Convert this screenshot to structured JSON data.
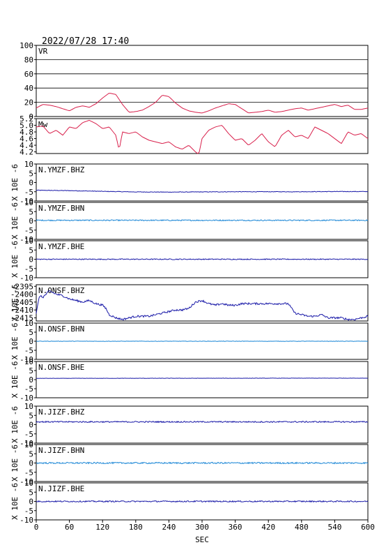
{
  "header": {
    "timestamp": "2022/07/28 17:40"
  },
  "x_axis": {
    "label": "SEC",
    "min": 0,
    "max": 600,
    "ticks": [
      0,
      60,
      120,
      180,
      240,
      300,
      360,
      420,
      480,
      540,
      600
    ]
  },
  "unit_label": "X 10E -6",
  "colors": {
    "frame": "#000000",
    "vr": "#d81e4a",
    "mw": "#d81e4a",
    "dark_blue": "#1a1aa8",
    "light_blue": "#1a86d6",
    "grid": "#000000"
  },
  "chart_data": [
    {
      "type": "line",
      "name": "VR",
      "label": "VR",
      "color": "#d81e4a",
      "ylim": [
        0,
        100
      ],
      "yticks": [
        0,
        20,
        40,
        60,
        80,
        100
      ],
      "grid": true,
      "x": [
        0,
        12,
        24,
        36,
        48,
        60,
        72,
        84,
        96,
        108,
        120,
        132,
        144,
        156,
        168,
        180,
        192,
        204,
        216,
        228,
        240,
        252,
        264,
        276,
        288,
        300,
        312,
        324,
        336,
        348,
        360,
        372,
        384,
        396,
        408,
        420,
        432,
        444,
        456,
        468,
        480,
        492,
        504,
        516,
        528,
        540,
        552,
        564,
        576,
        588,
        600
      ],
      "y": [
        12,
        17,
        16,
        14,
        11,
        8,
        13,
        15,
        13,
        18,
        26,
        33,
        31,
        17,
        6,
        7,
        9,
        14,
        20,
        30,
        28,
        19,
        12,
        8,
        6,
        5,
        8,
        12,
        15,
        18,
        17,
        11,
        5,
        6,
        7,
        9,
        6,
        7,
        9,
        11,
        12,
        9,
        11,
        13,
        15,
        17,
        14,
        16,
        10,
        10,
        12
      ]
    },
    {
      "type": "line",
      "name": "Mw",
      "label": "Mw",
      "color": "#d81e4a",
      "ylim": [
        4.15,
        5.2
      ],
      "yticks": [
        4.2,
        4.4,
        4.6,
        4.8,
        5.0,
        5.2
      ],
      "ytick_labels": [
        "4.2",
        "4.4",
        "4.6",
        "4.8",
        "5.0",
        "5.2"
      ],
      "grid": false,
      "x": [
        0,
        12,
        24,
        36,
        48,
        60,
        72,
        84,
        96,
        108,
        120,
        132,
        144,
        150,
        156,
        168,
        180,
        192,
        204,
        216,
        228,
        240,
        252,
        264,
        276,
        288,
        294,
        300,
        312,
        324,
        336,
        348,
        360,
        372,
        384,
        396,
        408,
        420,
        432,
        444,
        456,
        468,
        480,
        492,
        504,
        516,
        528,
        540,
        552,
        564,
        576,
        588,
        600
      ],
      "y": [
        4.95,
        4.98,
        4.75,
        4.85,
        4.7,
        4.95,
        4.9,
        5.08,
        5.15,
        5.05,
        4.9,
        4.95,
        4.7,
        4.25,
        4.8,
        4.75,
        4.8,
        4.65,
        4.55,
        4.5,
        4.45,
        4.5,
        4.35,
        4.28,
        4.4,
        4.2,
        4.12,
        4.6,
        4.85,
        4.95,
        5.0,
        4.75,
        4.55,
        4.6,
        4.4,
        4.55,
        4.75,
        4.5,
        4.35,
        4.7,
        4.85,
        4.65,
        4.7,
        4.6,
        4.95,
        4.85,
        4.75,
        4.6,
        4.45,
        4.8,
        4.7,
        4.75,
        4.6
      ]
    },
    {
      "type": "line",
      "name": "N.YMZF.BHZ",
      "label": "N.YMZF.BHZ",
      "color": "#1a1aa8",
      "ylim": [
        -10,
        10
      ],
      "yticks": [
        -10,
        -5,
        0,
        5,
        10
      ],
      "baseline": -4.6,
      "noise": 0.15,
      "x": [
        0,
        60,
        120,
        180,
        240,
        300,
        360,
        420,
        480,
        540,
        600
      ],
      "y": [
        -4.2,
        -4.4,
        -4.8,
        -5.1,
        -5.2,
        -5.1,
        -5.0,
        -5.0,
        -5.0,
        -4.9,
        -4.9
      ]
    },
    {
      "type": "line",
      "name": "N.YMZF.BHN",
      "label": "N.YMZF.BHN",
      "color": "#1a86d6",
      "ylim": [
        -10,
        10
      ],
      "yticks": [
        -10,
        -5,
        0,
        5,
        10
      ],
      "noise": 0.3,
      "x": [
        0,
        600
      ],
      "y": [
        0.3,
        0.3
      ]
    },
    {
      "type": "line",
      "name": "N.YMZF.BHE",
      "label": "N.YMZF.BHE",
      "color": "#1a1aa8",
      "ylim": [
        -10,
        10
      ],
      "yticks": [
        -10,
        -5,
        0,
        5,
        10
      ],
      "noise": 0.25,
      "x": [
        0,
        600
      ],
      "y": [
        0,
        0
      ]
    },
    {
      "type": "line",
      "name": "N.ONSF.BHZ",
      "label": "N.ONSF.BHZ",
      "color": "#1a1aa8",
      "ylim": [
        -2417,
        -2394
      ],
      "yticks": [
        -2415,
        -2410,
        -2405,
        -2400,
        -2395
      ],
      "ytick_labels": [
        "-2415",
        "-2410",
        "-2405",
        "-2400",
        "-2395"
      ],
      "noise": 0.6,
      "x": [
        0,
        6,
        12,
        24,
        36,
        48,
        60,
        72,
        84,
        96,
        108,
        120,
        126,
        132,
        144,
        156,
        168,
        180,
        192,
        204,
        216,
        228,
        240,
        252,
        264,
        276,
        288,
        300,
        312,
        324,
        336,
        348,
        360,
        372,
        384,
        396,
        408,
        420,
        432,
        444,
        456,
        462,
        468,
        480,
        492,
        504,
        516,
        528,
        540,
        552,
        564,
        576,
        588,
        600
      ],
      "y": [
        -2412,
        -2401,
        -2402,
        -2398,
        -2400,
        -2401,
        -2403,
        -2404,
        -2405,
        -2404,
        -2406,
        -2407,
        -2409,
        -2413,
        -2415,
        -2416,
        -2415,
        -2414,
        -2414,
        -2414,
        -2413,
        -2412,
        -2411,
        -2410,
        -2410,
        -2409,
        -2405,
        -2404,
        -2406,
        -2407,
        -2406,
        -2407,
        -2407,
        -2406,
        -2406,
        -2406,
        -2406,
        -2406,
        -2406,
        -2406,
        -2406,
        -2409,
        -2412,
        -2413,
        -2414,
        -2414,
        -2413,
        -2415,
        -2415,
        -2415,
        -2416,
        -2416,
        -2415,
        -2414
      ]
    },
    {
      "type": "line",
      "name": "N.ONSF.BHN",
      "label": "N.ONSF.BHN",
      "color": "#1a86d6",
      "ylim": [
        -10,
        10
      ],
      "yticks": [
        -10,
        -5,
        0,
        5,
        10
      ],
      "noise": 0.1,
      "x": [
        0,
        600
      ],
      "y": [
        0,
        0
      ]
    },
    {
      "type": "line",
      "name": "N.ONSF.BHE",
      "label": "N.ONSF.BHE",
      "color": "#1a1aa8",
      "ylim": [
        -10,
        10
      ],
      "yticks": [
        -10,
        -5,
        0,
        5,
        10
      ],
      "noise": 0.08,
      "x": [
        0,
        600
      ],
      "y": [
        0.7,
        0.8
      ]
    },
    {
      "type": "line",
      "name": "N.JIZF.BHZ",
      "label": "N.JIZF.BHZ",
      "color": "#1a1aa8",
      "ylim": [
        -10,
        10
      ],
      "yticks": [
        -10,
        -5,
        0,
        5,
        10
      ],
      "noise": 0.35,
      "x": [
        0,
        600
      ],
      "y": [
        1.5,
        1.5
      ]
    },
    {
      "type": "line",
      "name": "N.JIZF.BHN",
      "label": "N.JIZF.BHN",
      "color": "#1a86d6",
      "ylim": [
        -10,
        10
      ],
      "yticks": [
        -10,
        -5,
        0,
        5,
        10
      ],
      "noise": 0.4,
      "x": [
        0,
        600
      ],
      "y": [
        0,
        0
      ]
    },
    {
      "type": "line",
      "name": "N.JIZF.BHE",
      "label": "N.JIZF.BHE",
      "color": "#1a1aa8",
      "ylim": [
        -10,
        10
      ],
      "yticks": [
        -10,
        -5,
        0,
        5,
        10
      ],
      "noise": 0.35,
      "x": [
        0,
        600
      ],
      "y": [
        0,
        0
      ]
    }
  ]
}
